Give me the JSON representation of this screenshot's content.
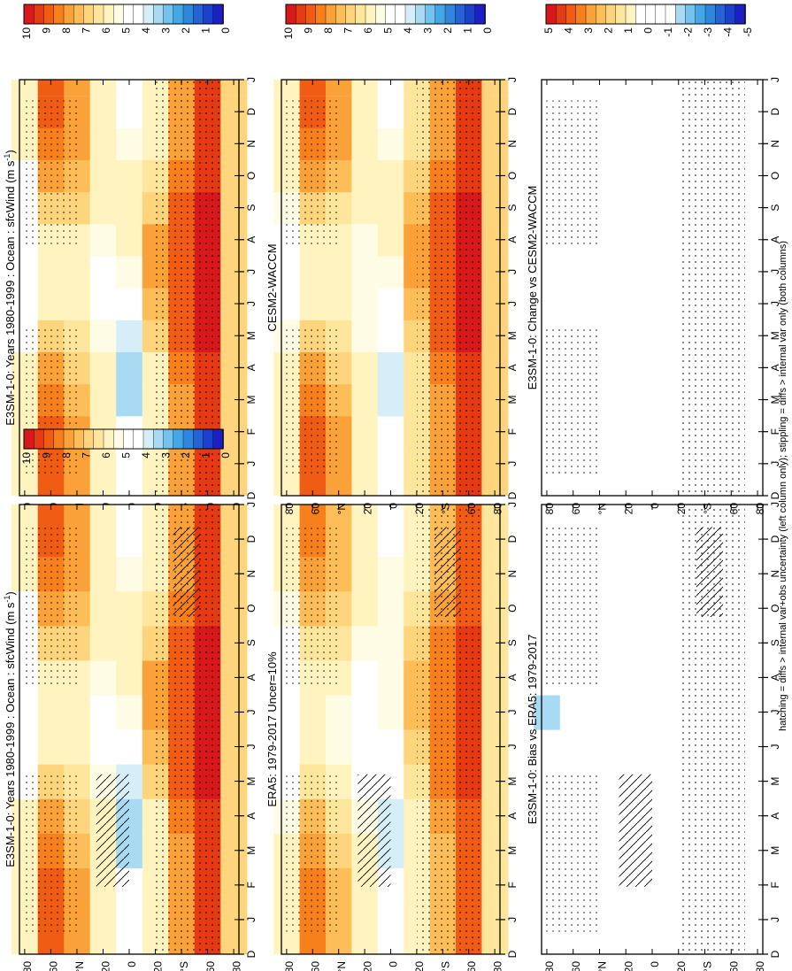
{
  "figure": {
    "footnote": "hatching = diffs > internal var+obs uncertainty (left column only); stippling = diffs > internal var only (both columns)"
  },
  "colorbars": {
    "absolute": {
      "labels": [
        "10",
        "9",
        "8",
        "7",
        "6",
        "5",
        "4",
        "3",
        "2",
        "1",
        "0"
      ],
      "colors": [
        "#d7191c",
        "#e53a12",
        "#f05c14",
        "#f7801c",
        "#fba13a",
        "#fdbe5a",
        "#fed57c",
        "#fee79c",
        "#fff3c0",
        "#fffce6",
        "#ffffff",
        "#ffffff",
        "#d6eef8",
        "#a8dbf3",
        "#72c4ee",
        "#45a8e6",
        "#2f86dd",
        "#2563d4",
        "#1b41cc",
        "#1b1fc4"
      ]
    },
    "difference": {
      "labels": [
        "5",
        "4",
        "3",
        "2",
        "1",
        "0",
        "-1",
        "-2",
        "-3",
        "-4",
        "-5"
      ],
      "colors": [
        "#d7191c",
        "#e53a12",
        "#f05c14",
        "#f7801c",
        "#fba13a",
        "#fdbe5a",
        "#fed57c",
        "#fee79c",
        "#fff3c0",
        "#ffffff",
        "#ffffff",
        "#ffffff",
        "#ffffff",
        "#a8dbf3",
        "#72c4ee",
        "#45a8e6",
        "#2f86dd",
        "#2563d4",
        "#1b41cc",
        "#1b1fc4"
      ]
    }
  },
  "axes": {
    "month_ticks": [
      "D",
      "J",
      "F",
      "M",
      "A",
      "M",
      "J",
      "J",
      "A",
      "S",
      "O",
      "N",
      "D",
      "J"
    ],
    "lat_ticks": [
      "80",
      "60",
      "°N",
      "20",
      "0",
      "20",
      "°S",
      "60",
      "80"
    ]
  },
  "panels": [
    {
      "id": "p1",
      "title": "E3SM-1-0: Years 1980-1999 : Ocean : sfcWind (m s",
      "title_sup": "-1",
      "title_end": ")",
      "scale": "absolute"
    },
    {
      "id": "p2",
      "title": "E3SM-1-0: Years 1980-1999 : Ocean : sfcWind (m s",
      "title_sup": "-1",
      "title_end": ")",
      "scale": "absolute"
    },
    {
      "id": "p3",
      "title": "ERA5: 1979-2017 Uncer=10%",
      "title_sup": "",
      "title_end": "",
      "scale": "absolute"
    },
    {
      "id": "p4",
      "title": "CESM2-WACCM",
      "title_sup": "",
      "title_end": "",
      "scale": "absolute"
    },
    {
      "id": "p5",
      "title": "E3SM-1-0: Bias vs ERA5: 1979-2017",
      "title_sup": "",
      "title_end": "",
      "scale": "difference"
    },
    {
      "id": "p6",
      "title": "E3SM-1-0: Change vs CESM2-WACCM",
      "title_sup": "",
      "title_end": "",
      "scale": "difference"
    }
  ],
  "chart_data": [
    {
      "type": "heatmap",
      "title": "E3SM-1-0: Years 1980-1999 : Ocean : sfcWind (m s-1)",
      "x": [
        "J",
        "F",
        "M",
        "A",
        "M",
        "J",
        "J",
        "A",
        "S",
        "O",
        "N",
        "D"
      ],
      "y": [
        80,
        60,
        40,
        20,
        0,
        -20,
        -40,
        -60,
        -80
      ],
      "values": [
        [
          6,
          6,
          6,
          6,
          5,
          5,
          5,
          5,
          5,
          5,
          6,
          6
        ],
        [
          9,
          9,
          8.5,
          8,
          7,
          6,
          6,
          6,
          7,
          8,
          8.5,
          9
        ],
        [
          8,
          8,
          7.5,
          7,
          6.5,
          6,
          6,
          6,
          7,
          7.5,
          8,
          8
        ],
        [
          6,
          6,
          6,
          6,
          5.5,
          5,
          5,
          5.5,
          6,
          6,
          6,
          6
        ],
        [
          5,
          4.5,
          3.5,
          3.5,
          4,
          5,
          5.5,
          6,
          6,
          6,
          5.5,
          5
        ],
        [
          6,
          6,
          6,
          6,
          7,
          7.5,
          8,
          8,
          7,
          6.5,
          6,
          6
        ],
        [
          8,
          8,
          8,
          8.5,
          9,
          9,
          9,
          9,
          9,
          8.5,
          8,
          8
        ],
        [
          9.5,
          9.5,
          9.5,
          9.5,
          10,
          10,
          10,
          10,
          10,
          9.5,
          9.5,
          9.5
        ],
        [
          7,
          7,
          7,
          7,
          7,
          7,
          7,
          7,
          7,
          7,
          7,
          7
        ]
      ]
    },
    {
      "type": "heatmap",
      "title": "E3SM-1-0: Years 1980-1999 : Ocean : sfcWind (m s-1)",
      "x": [
        "J",
        "F",
        "M",
        "A",
        "M",
        "J",
        "J",
        "A",
        "S",
        "O",
        "N",
        "D"
      ],
      "y": [
        80,
        60,
        40,
        20,
        0,
        -20,
        -40,
        -60,
        -80
      ],
      "values": [
        [
          6,
          6,
          6,
          6,
          5,
          5,
          5,
          5,
          5,
          5,
          6,
          6
        ],
        [
          9,
          9,
          8.5,
          8,
          7,
          6,
          6,
          6,
          7,
          8,
          8.5,
          9
        ],
        [
          8,
          8,
          7.5,
          7,
          6.5,
          6,
          6,
          6,
          7,
          7.5,
          8,
          8
        ],
        [
          6,
          6,
          6,
          6,
          5.5,
          5,
          5,
          5.5,
          6,
          6,
          6,
          6
        ],
        [
          5,
          4.5,
          3.5,
          3.5,
          4,
          5,
          5.5,
          6,
          6,
          6,
          5.5,
          5
        ],
        [
          6,
          6,
          6,
          6,
          7,
          7.5,
          8,
          8,
          7,
          6.5,
          6,
          6
        ],
        [
          8,
          8,
          8,
          8.5,
          9,
          9,
          9,
          9,
          9,
          8.5,
          8,
          8
        ],
        [
          9.5,
          9.5,
          9.5,
          9.5,
          10,
          10,
          10,
          10,
          10,
          9.5,
          9.5,
          9.5
        ],
        [
          7,
          7,
          7,
          7,
          7,
          7,
          7,
          7,
          7,
          7,
          7,
          7
        ]
      ]
    },
    {
      "type": "heatmap",
      "title": "ERA5: 1979-2017 Uncer=10%",
      "x": [
        "J",
        "F",
        "M",
        "A",
        "M",
        "J",
        "J",
        "A",
        "S",
        "O",
        "N",
        "D"
      ],
      "y": [
        80,
        60,
        40,
        20,
        0,
        -20,
        -40,
        -60,
        -80
      ],
      "values": [
        [
          6,
          6,
          6,
          5.5,
          5,
          5,
          5,
          5,
          5,
          5.5,
          6,
          6
        ],
        [
          8.5,
          8.5,
          8,
          7.5,
          6.5,
          6,
          6,
          6,
          6.5,
          7.5,
          8,
          8.5
        ],
        [
          7.5,
          7.5,
          7,
          6.5,
          6,
          5.5,
          5.5,
          6,
          6.5,
          7,
          7.5,
          7.5
        ],
        [
          6,
          6,
          6,
          5.5,
          5,
          5,
          5,
          5,
          5.5,
          6,
          6,
          6
        ],
        [
          5,
          4.5,
          4,
          4,
          4.5,
          5,
          5.5,
          5.5,
          5.5,
          5.5,
          5.5,
          5
        ],
        [
          6,
          6,
          6,
          6,
          6.5,
          7,
          7.5,
          7.5,
          7,
          6.5,
          6,
          6
        ],
        [
          7.5,
          7.5,
          7.5,
          8,
          8.5,
          8.5,
          8.5,
          8.5,
          8.5,
          8,
          7.5,
          7.5
        ],
        [
          9,
          9,
          9,
          9,
          9.5,
          9.5,
          9.5,
          9.5,
          9.5,
          9,
          9,
          9
        ],
        [
          6.5,
          6.5,
          6.5,
          6.5,
          6.5,
          6.5,
          6.5,
          6.5,
          6.5,
          6.5,
          6.5,
          6.5
        ]
      ]
    },
    {
      "type": "heatmap",
      "title": "CESM2-WACCM",
      "x": [
        "J",
        "F",
        "M",
        "A",
        "M",
        "J",
        "J",
        "A",
        "S",
        "O",
        "N",
        "D"
      ],
      "y": [
        80,
        60,
        40,
        20,
        0,
        -20,
        -40,
        -60,
        -80
      ],
      "values": [
        [
          6,
          6,
          6,
          6,
          5.5,
          5,
          5,
          5,
          5.5,
          6,
          6,
          6
        ],
        [
          9,
          9,
          8.5,
          8,
          7,
          6,
          6,
          6,
          7,
          8,
          8.5,
          9
        ],
        [
          8,
          8,
          7.5,
          7,
          6.5,
          6,
          6,
          6,
          6.5,
          7.5,
          8,
          8
        ],
        [
          6,
          6,
          6,
          6,
          5.5,
          5.5,
          5.5,
          5.5,
          6,
          6,
          6,
          6
        ],
        [
          5,
          5,
          4,
          4,
          4.5,
          5,
          5.5,
          6,
          6,
          6,
          5.5,
          5
        ],
        [
          6.5,
          6.5,
          6.5,
          6.5,
          7,
          7.5,
          8,
          8,
          7.5,
          7,
          6.5,
          6.5
        ],
        [
          8,
          8,
          8,
          8.5,
          9,
          9,
          9,
          9,
          9,
          8.5,
          8,
          8
        ],
        [
          9.5,
          9.5,
          9.5,
          9.5,
          10,
          10,
          10,
          10,
          10,
          9.5,
          9.5,
          9.5
        ],
        [
          7,
          7,
          7,
          7,
          7,
          7,
          7,
          7,
          7,
          7,
          7,
          7
        ]
      ]
    },
    {
      "type": "heatmap",
      "title": "E3SM-1-0: Bias vs ERA5: 1979-2017",
      "x": [
        "J",
        "F",
        "M",
        "A",
        "M",
        "J",
        "J",
        "A",
        "S",
        "O",
        "N",
        "D"
      ],
      "y": [
        80,
        60,
        40,
        20,
        0,
        -20,
        -40,
        -60,
        -80
      ],
      "values": [
        [
          0,
          0,
          0,
          0.5,
          0,
          -1,
          -1.5,
          -1,
          0,
          0,
          0,
          0
        ],
        [
          0.5,
          0.5,
          0.5,
          0.5,
          0.5,
          0,
          0,
          0,
          0.5,
          0.5,
          0.5,
          0.5
        ],
        [
          0.5,
          0.5,
          0.5,
          0.5,
          0.5,
          0.5,
          0.5,
          0,
          0.5,
          0.5,
          0.5,
          0.5
        ],
        [
          0,
          0,
          0.5,
          0.5,
          0.5,
          0,
          0,
          0.5,
          0.5,
          0,
          0,
          0
        ],
        [
          0,
          0,
          -0.5,
          -0.5,
          -0.5,
          0,
          0,
          0.5,
          0.5,
          0.5,
          0,
          0
        ],
        [
          0,
          0,
          0,
          0,
          0.5,
          0.5,
          0.5,
          0.5,
          0,
          0,
          0,
          0
        ],
        [
          0.5,
          0.5,
          0.5,
          0.5,
          0.5,
          0.5,
          0.5,
          0.5,
          0.5,
          0.5,
          0.5,
          0.5
        ],
        [
          0.5,
          0.5,
          0.5,
          0.5,
          0.5,
          0.5,
          0.5,
          0.5,
          0.5,
          0.5,
          0.5,
          0.5
        ],
        [
          0,
          0,
          0,
          0,
          0,
          0,
          0,
          0,
          0,
          0,
          0,
          0
        ]
      ]
    },
    {
      "type": "heatmap",
      "title": "E3SM-1-0: Change vs CESM2-WACCM",
      "x": [
        "J",
        "F",
        "M",
        "A",
        "M",
        "J",
        "J",
        "A",
        "S",
        "O",
        "N",
        "D"
      ],
      "y": [
        80,
        60,
        40,
        20,
        0,
        -20,
        -40,
        -60,
        -80
      ],
      "values": [
        [
          0,
          0,
          0,
          0,
          0,
          -0.5,
          -1,
          -1,
          0,
          0,
          0,
          0
        ],
        [
          0,
          -0.5,
          0,
          0,
          0,
          0,
          0,
          0,
          0,
          0,
          0,
          0
        ],
        [
          0,
          0,
          0,
          0,
          0,
          0,
          -0.5,
          -0.5,
          0,
          0,
          0,
          0
        ],
        [
          0,
          0,
          0.5,
          0,
          0,
          -0.5,
          -0.5,
          0,
          0,
          0,
          0,
          0
        ],
        [
          0,
          -0.5,
          -0.5,
          -0.5,
          -0.5,
          0,
          0,
          -0.5,
          0,
          0,
          0,
          0
        ],
        [
          -1,
          -1,
          -1,
          -0.5,
          -0.5,
          0,
          0,
          -0.5,
          -0.5,
          0,
          0,
          0
        ],
        [
          0,
          0,
          0,
          0,
          0,
          0,
          0,
          0,
          0,
          0,
          0,
          0
        ],
        [
          -0.5,
          -0.5,
          -0.5,
          -0.5,
          -0.5,
          -0.5,
          -0.5,
          -0.5,
          -0.5,
          -0.5,
          -0.5,
          -0.5
        ],
        [
          -1,
          -1,
          -0.5,
          -0.5,
          -0.5,
          -1,
          -1,
          -1,
          -1,
          -1,
          -1,
          -1
        ]
      ]
    }
  ]
}
